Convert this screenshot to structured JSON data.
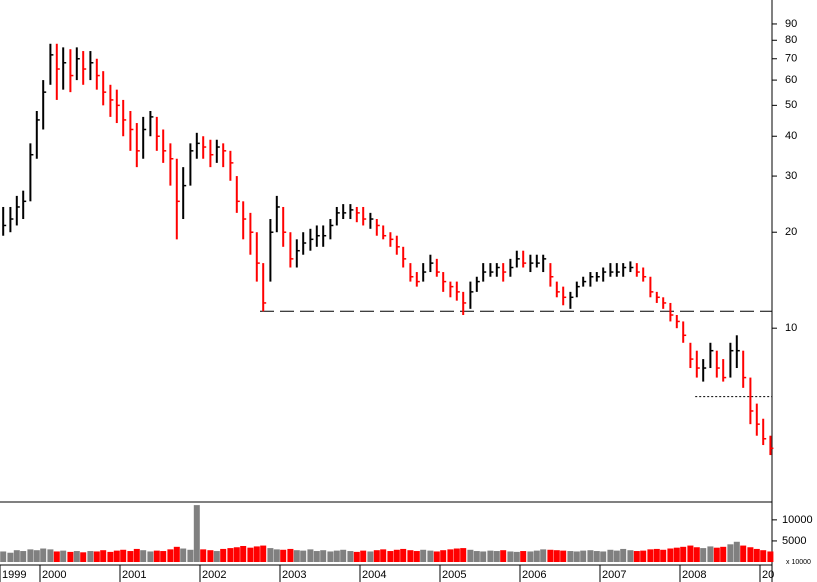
{
  "chart_data": {
    "type": "ohlc",
    "x": [
      1999.54,
      1999.63,
      1999.71,
      1999.79,
      1999.88,
      1999.96,
      2000.04,
      2000.13,
      2000.21,
      2000.29,
      2000.38,
      2000.46,
      2000.54,
      2000.63,
      2000.71,
      2000.79,
      2000.88,
      2000.96,
      2001.04,
      2001.13,
      2001.21,
      2001.29,
      2001.38,
      2001.46,
      2001.54,
      2001.63,
      2001.71,
      2001.79,
      2001.88,
      2001.96,
      2002.04,
      2002.13,
      2002.21,
      2002.29,
      2002.38,
      2002.46,
      2002.54,
      2002.63,
      2002.71,
      2002.79,
      2002.88,
      2002.96,
      2003.04,
      2003.13,
      2003.21,
      2003.29,
      2003.38,
      2003.46,
      2003.54,
      2003.63,
      2003.71,
      2003.79,
      2003.88,
      2003.96,
      2004.04,
      2004.13,
      2004.21,
      2004.29,
      2004.38,
      2004.46,
      2004.54,
      2004.63,
      2004.71,
      2004.79,
      2004.88,
      2004.96,
      2005.04,
      2005.13,
      2005.21,
      2005.29,
      2005.38,
      2005.46,
      2005.54,
      2005.63,
      2005.71,
      2005.79,
      2005.88,
      2005.96,
      2006.04,
      2006.13,
      2006.21,
      2006.29,
      2006.38,
      2006.46,
      2006.54,
      2006.63,
      2006.71,
      2006.79,
      2006.88,
      2006.96,
      2007.04,
      2007.13,
      2007.21,
      2007.29,
      2007.38,
      2007.46,
      2007.54,
      2007.63,
      2007.71,
      2007.79,
      2007.88,
      2007.96,
      2008.04,
      2008.13,
      2008.21,
      2008.29,
      2008.38,
      2008.46,
      2008.54,
      2008.63,
      2008.71,
      2008.79,
      2008.88,
      2008.96,
      2009.04,
      2009.13
    ],
    "high": [
      24,
      24,
      26,
      27,
      38,
      48,
      60,
      78,
      78,
      76,
      75,
      76,
      74,
      74,
      70,
      64,
      58,
      56,
      52,
      48,
      44,
      46,
      48,
      46,
      42,
      38,
      34,
      32,
      38,
      41,
      40,
      39,
      39,
      38,
      36,
      30,
      25,
      23,
      20,
      16,
      22,
      26,
      24,
      20,
      19,
      20,
      20.5,
      21,
      21,
      22,
      24,
      24.5,
      24.5,
      24,
      24,
      23,
      22,
      21,
      20,
      19.5,
      18,
      16,
      15,
      16,
      17,
      16.5,
      15,
      14,
      14,
      13,
      14,
      14.5,
      16,
      16,
      16,
      16,
      16.5,
      17.5,
      17.5,
      17,
      17,
      17,
      16,
      14,
      13.5,
      13,
      14,
      14.5,
      15,
      15,
      15.5,
      16,
      16,
      16,
      16.2,
      16,
      15.5,
      14.5,
      13,
      12.5,
      12,
      11,
      10.5,
      9,
      8.5,
      8,
      9,
      8.5,
      8,
      9,
      9.5,
      8.5,
      7,
      5.8,
      5.2,
      4.6
    ],
    "low": [
      19.5,
      20,
      21,
      22,
      25,
      34,
      42,
      58,
      52,
      56,
      55,
      60,
      58,
      60,
      56,
      50,
      46,
      44,
      40,
      36,
      32,
      34,
      40,
      36,
      33,
      28,
      19,
      22,
      28,
      34,
      34,
      32,
      33,
      32,
      29,
      23,
      19,
      17,
      14,
      11.3,
      14,
      20,
      18,
      15.5,
      15.5,
      17,
      17.5,
      18,
      18,
      19,
      21,
      22,
      22,
      21.5,
      21,
      20.5,
      19.5,
      19,
      18,
      17,
      15.5,
      14,
      13.5,
      14,
      15,
      14.5,
      13,
      12.5,
      12.2,
      11,
      11.5,
      13,
      14,
      14.5,
      14.5,
      14,
      14.5,
      15.5,
      15.5,
      15,
      15.5,
      15,
      13.5,
      12.5,
      11.8,
      11.5,
      12.5,
      13.5,
      13.5,
      14,
      14,
      14.5,
      14.5,
      14.5,
      15,
      14.5,
      14,
      12.5,
      12,
      11.5,
      10.5,
      10,
      9,
      7.5,
      7,
      6.8,
      7.5,
      7,
      6.8,
      7,
      7.5,
      6.5,
      5,
      4.6,
      4.3,
      4.0
    ],
    "close": [
      21,
      22,
      24,
      25,
      35,
      45,
      55,
      72,
      65,
      68,
      62,
      70,
      65,
      68,
      62,
      55,
      52,
      50,
      45,
      42,
      36,
      42,
      46,
      40,
      36,
      34,
      25,
      28,
      36,
      38,
      37,
      35,
      37,
      36,
      33,
      25,
      22,
      20,
      16,
      12,
      20,
      24,
      20,
      16.5,
      17.5,
      18.5,
      19,
      19.5,
      19.5,
      21,
      23,
      23,
      23.5,
      23,
      22,
      22,
      21,
      19.5,
      19,
      18,
      16.5,
      14.5,
      14,
      15,
      16,
      15,
      14,
      13.5,
      13,
      12,
      13,
      14,
      15,
      15,
      15.5,
      15,
      15.5,
      16.5,
      16,
      16,
      16,
      16.5,
      14.5,
      13,
      12.5,
      12.5,
      13.5,
      14,
      14.5,
      14.5,
      15,
      15,
      15,
      15.5,
      15.5,
      15,
      14.5,
      13,
      12.5,
      12,
      11,
      10.5,
      9.5,
      8,
      7.5,
      7.5,
      8.5,
      7.5,
      7,
      8.5,
      8.5,
      7,
      5.5,
      5,
      4.5,
      4.2
    ],
    "up_color": "#000000",
    "down_color": "#ff0000",
    "ylim": [
      2.85,
      107
    ],
    "log_scale": true,
    "yticks": [
      10,
      20,
      30,
      40,
      50,
      60,
      70,
      80,
      90
    ],
    "xlim": [
      1999.5,
      2009.15
    ],
    "xticks": [
      {
        "value": 1999.5,
        "label": "1999"
      },
      2000,
      2001,
      2002,
      2003,
      2004,
      2005,
      2006,
      2007,
      2008,
      {
        "value": 2009,
        "label": "20"
      }
    ],
    "reference_lines": [
      {
        "y": 11.3,
        "from": 2002.75,
        "style": "dashed"
      },
      {
        "y": 6.1,
        "from": 2008.19,
        "style": "dotted"
      }
    ],
    "volume": {
      "values": [
        2500,
        2200,
        2800,
        2600,
        3000,
        2800,
        3200,
        3000,
        2500,
        2700,
        2400,
        2600,
        2300,
        2600,
        2500,
        2800,
        2400,
        2700,
        2900,
        2600,
        3100,
        2800,
        2500,
        2700,
        2600,
        3000,
        3600,
        3200,
        2900,
        13500,
        3000,
        2800,
        2600,
        3100,
        3300,
        3500,
        3800,
        3400,
        3700,
        3900,
        3300,
        3000,
        2900,
        3100,
        2800,
        2700,
        3000,
        2600,
        2800,
        2500,
        2700,
        2900,
        2600,
        2400,
        2700,
        2500,
        2800,
        3000,
        2600,
        2900,
        3100,
        2800,
        2600,
        2900,
        2700,
        2500,
        2800,
        3000,
        3200,
        3300,
        2900,
        2600,
        2500,
        2700,
        2600,
        2800,
        2500,
        2400,
        2600,
        2500,
        2700,
        3000,
        2900,
        2800,
        2700,
        2600,
        2500,
        2700,
        2800,
        2600,
        2500,
        2900,
        2700,
        3100,
        2800,
        2600,
        2700,
        3000,
        3100,
        2900,
        3200,
        3400,
        3600,
        3900,
        3500,
        3300,
        3700,
        3400,
        3600,
        4200,
        4800,
        3900,
        3500,
        3100,
        2800,
        2500
      ],
      "up_color": "#808080",
      "down_color": "#ff0000",
      "ylim": [
        0,
        14000
      ],
      "yticks": [
        5000,
        10000
      ],
      "unit_label": "x 10000"
    }
  }
}
